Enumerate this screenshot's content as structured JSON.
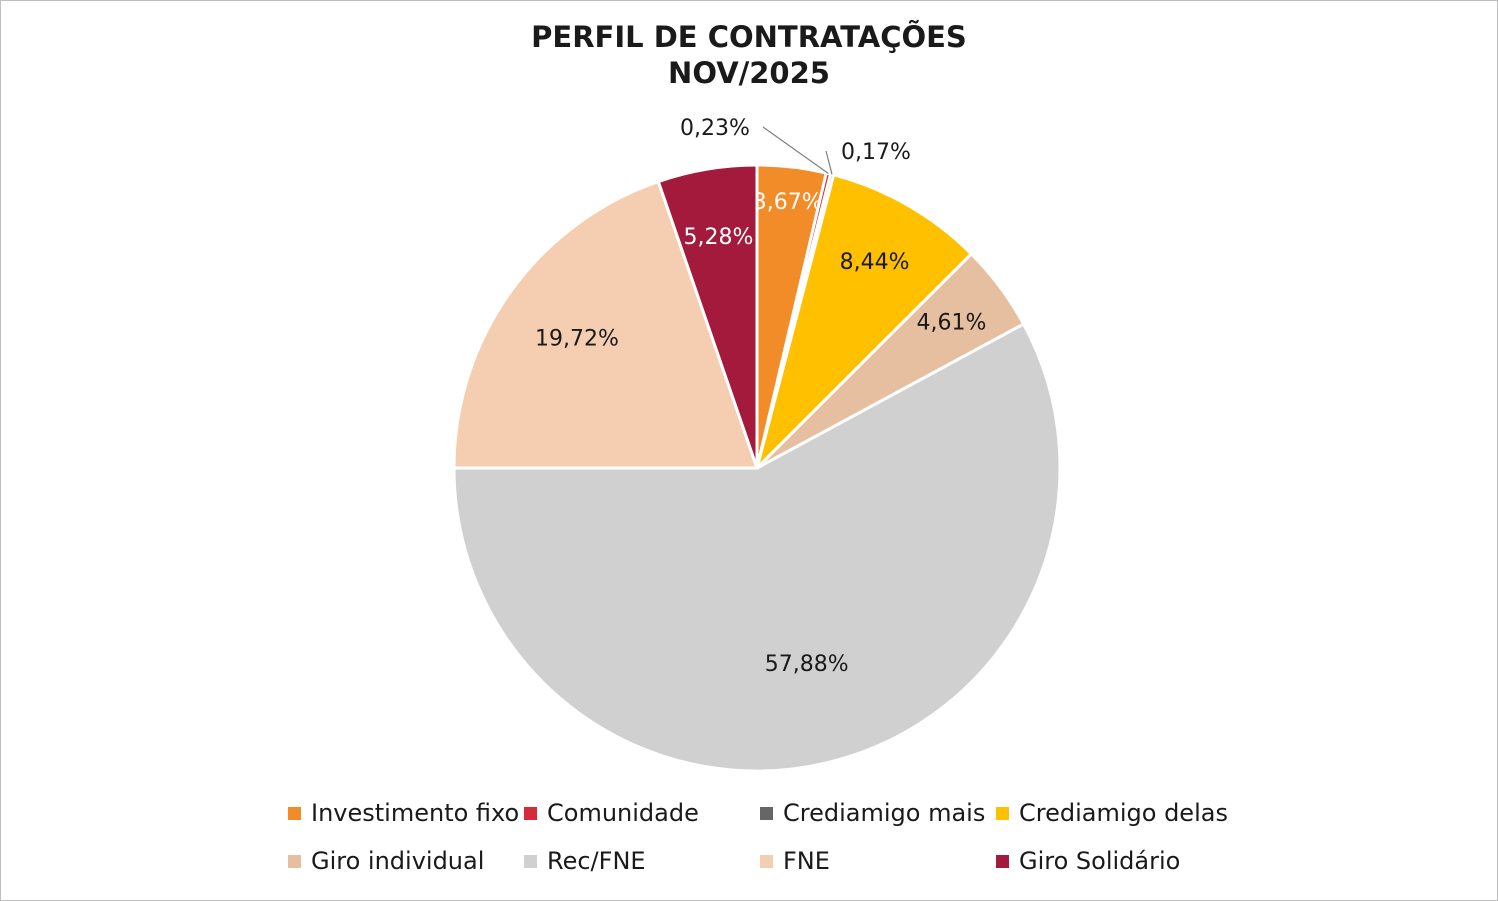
{
  "chart_data": {
    "type": "pie",
    "title_line1": "PERFIL DE CONTRATAÇÕES",
    "title_line2": "NOV/2025",
    "slices": [
      {
        "name": "Investimento fixo",
        "value": 3.67,
        "label": "3,67%",
        "color": "#f28c28",
        "label_color": "#ffffff"
      },
      {
        "name": "Comunidade",
        "value": 0.23,
        "label": "0,23%",
        "color": "#d62c3a",
        "label_color": "#1a1a1a"
      },
      {
        "name": "Crediamigo mais",
        "value": 0.17,
        "label": "0,17%",
        "color": "#666666",
        "label_color": "#1a1a1a"
      },
      {
        "name": "Crediamigo delas",
        "value": 8.44,
        "label": "8,44%",
        "color": "#ffc000",
        "label_color": "#1a1a1a"
      },
      {
        "name": "Giro individual",
        "value": 4.61,
        "label": "4,61%",
        "color": "#e6bfa0",
        "label_color": "#1a1a1a"
      },
      {
        "name": "Rec/FNE",
        "value": 57.88,
        "label": "57,88%",
        "color": "#d1d0d0",
        "label_color": "#1a1a1a"
      },
      {
        "name": "FNE",
        "value": 19.72,
        "label": "19,72%",
        "color": "#f5cdb0",
        "label_color": "#1a1a1a"
      },
      {
        "name": "Giro Solidário",
        "value": 5.28,
        "label": "5,28%",
        "color": "#a31a3d",
        "label_color": "#ffffff"
      }
    ],
    "legend_position": "bottom"
  }
}
